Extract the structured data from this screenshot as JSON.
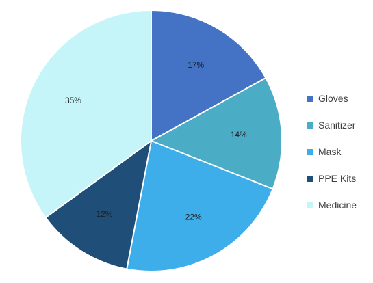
{
  "chart_data": {
    "type": "pie",
    "categories": [
      "Gloves",
      "Sanitizer",
      "Mask",
      "PPE Kits",
      "Medicine"
    ],
    "values": [
      17,
      14,
      22,
      12,
      35
    ],
    "labels": [
      "17%",
      "14%",
      "22%",
      "12%",
      "35%"
    ],
    "unit": "%",
    "colors": [
      "#4472c4",
      "#4bacc6",
      "#3daee9",
      "#1f4e79",
      "#c5f5f8"
    ],
    "start_angle": "12 o'clock",
    "direction": "clockwise",
    "title": "",
    "legend_position": "right"
  },
  "legend": {
    "items": [
      {
        "label": "Gloves",
        "color": "#4472c4"
      },
      {
        "label": "Sanitizer",
        "color": "#4bacc6"
      },
      {
        "label": "Mask",
        "color": "#3daee9"
      },
      {
        "label": "PPE Kits",
        "color": "#1f4e79"
      },
      {
        "label": "Medicine",
        "color": "#c5f5f8"
      }
    ]
  }
}
